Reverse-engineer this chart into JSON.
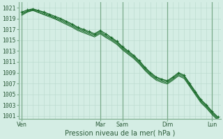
{
  "background_color": "#d4ede4",
  "grid_color_minor": "#b8d8cc",
  "grid_color_major": "#7aaa8a",
  "line_color": "#1a6b2a",
  "xlabel": "Pression niveau de la mer( hPa )",
  "ylim": [
    1000.5,
    1022.0
  ],
  "yticks": [
    1001,
    1003,
    1005,
    1007,
    1009,
    1011,
    1013,
    1015,
    1017,
    1019,
    1021
  ],
  "day_labels": [
    "Ven",
    "Mar",
    "Sam",
    "Dim",
    "Lun"
  ],
  "day_tick_positions": [
    0,
    14,
    18,
    26,
    34
  ],
  "num_points": 36,
  "series1": [
    1020.2,
    1020.6,
    1020.8,
    1020.5,
    1020.2,
    1019.8,
    1019.4,
    1019.0,
    1018.5,
    1018.0,
    1017.4,
    1017.0,
    1016.6,
    1016.2,
    1016.8,
    1016.2,
    1015.5,
    1014.8,
    1013.8,
    1013.0,
    1012.2,
    1011.2,
    1010.0,
    1009.0,
    1008.2,
    1007.8,
    1007.5,
    1008.2,
    1009.0,
    1008.5,
    1007.0,
    1005.5,
    1004.0,
    1003.0,
    1001.8,
    1000.8
  ],
  "series2": [
    1020.0,
    1020.4,
    1020.7,
    1020.4,
    1020.0,
    1019.6,
    1019.2,
    1018.8,
    1018.3,
    1017.8,
    1017.2,
    1016.8,
    1016.4,
    1016.0,
    1016.6,
    1015.9,
    1015.3,
    1014.6,
    1013.6,
    1012.8,
    1012.0,
    1011.0,
    1009.8,
    1008.8,
    1008.0,
    1007.6,
    1007.3,
    1008.0,
    1008.8,
    1008.3,
    1006.8,
    1005.3,
    1003.8,
    1002.8,
    1001.6,
    1000.6
  ],
  "series3": [
    1019.6,
    1020.2,
    1020.5,
    1020.1,
    1019.7,
    1019.3,
    1018.9,
    1018.4,
    1017.9,
    1017.4,
    1016.8,
    1016.4,
    1016.0,
    1015.6,
    1016.2,
    1015.5,
    1014.9,
    1014.2,
    1013.2,
    1012.4,
    1011.6,
    1010.6,
    1009.4,
    1008.4,
    1007.6,
    1007.2,
    1006.9,
    1007.6,
    1008.4,
    1007.9,
    1006.4,
    1004.9,
    1003.4,
    1002.4,
    1001.2,
    1000.2
  ],
  "series4": [
    1019.8,
    1020.3,
    1020.6,
    1020.2,
    1019.8,
    1019.5,
    1019.0,
    1018.6,
    1018.1,
    1017.6,
    1017.0,
    1016.6,
    1016.2,
    1015.8,
    1016.4,
    1015.7,
    1015.1,
    1014.4,
    1013.4,
    1012.6,
    1011.8,
    1010.8,
    1009.6,
    1008.6,
    1007.8,
    1007.4,
    1007.1,
    1007.8,
    1008.6,
    1008.1,
    1006.6,
    1005.1,
    1003.6,
    1002.6,
    1001.4,
    1000.4
  ],
  "title_fontsize": 6.5,
  "tick_fontsize": 5.8,
  "xlabel_fontsize": 7.0
}
